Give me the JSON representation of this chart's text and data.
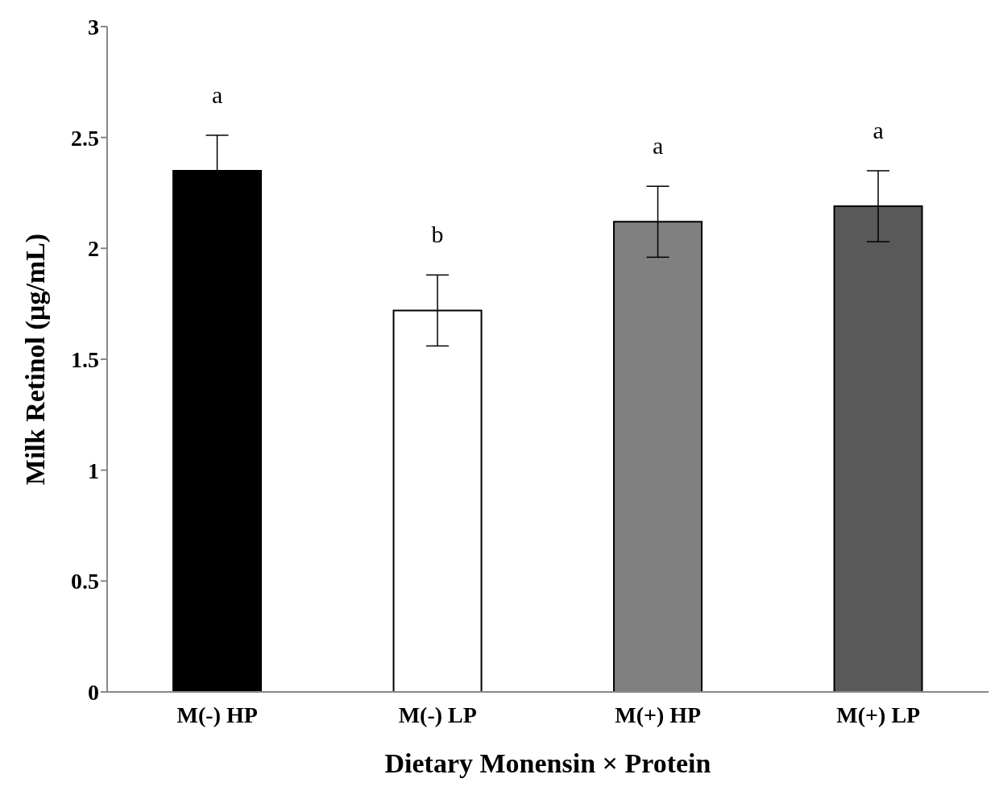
{
  "chart_data": {
    "type": "bar",
    "xlabel": "Dietary Monensin × Protein",
    "ylabel": "Milk Retinol (µg/mL)",
    "categories": [
      "M(-) HP",
      "M(-) LP",
      "M(+) HP",
      "M(+) LP"
    ],
    "values": [
      2.35,
      1.72,
      2.12,
      2.19
    ],
    "errors": [
      0.16,
      0.16,
      0.16,
      0.16
    ],
    "colors": [
      "#000000",
      "#ffffff",
      "#808080",
      "#595959"
    ],
    "ylim": [
      0,
      3
    ],
    "yticks": [
      0,
      0.5,
      1,
      1.5,
      2,
      2.5,
      3
    ],
    "grid": false,
    "legend": false,
    "annotations": [
      "a",
      "b",
      "a",
      "a"
    ]
  }
}
